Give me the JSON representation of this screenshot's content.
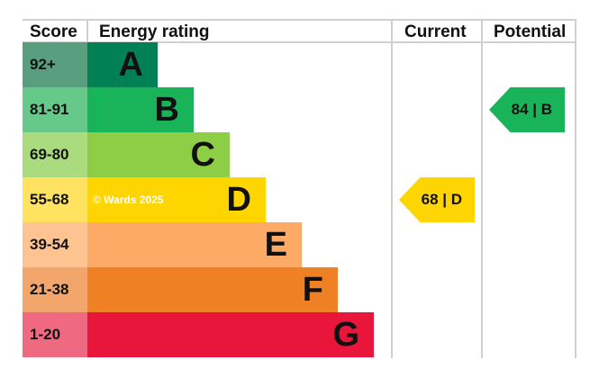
{
  "chart_data": {
    "type": "table",
    "headers": {
      "score": "Score",
      "rating": "Energy rating",
      "current": "Current",
      "potential": "Potential"
    },
    "bands": [
      {
        "letter": "A",
        "range": "92+",
        "color": "#008054",
        "score_color": "#5a9e80"
      },
      {
        "letter": "B",
        "range": "81-91",
        "color": "#19b459",
        "score_color": "#66c98a"
      },
      {
        "letter": "C",
        "range": "69-80",
        "color": "#8dce46",
        "score_color": "#aadb7e"
      },
      {
        "letter": "D",
        "range": "55-68",
        "color": "#ffd500",
        "score_color": "#ffe25f"
      },
      {
        "letter": "E",
        "range": "39-54",
        "color": "#fcaa65",
        "score_color": "#fdc492"
      },
      {
        "letter": "F",
        "range": "21-38",
        "color": "#ef8023",
        "score_color": "#f3a66b"
      },
      {
        "letter": "G",
        "range": "1-20",
        "color": "#e9153b",
        "score_color": "#ef6a80"
      }
    ],
    "current": {
      "value": 68,
      "band": "D",
      "label": "68 | D"
    },
    "potential": {
      "value": 84,
      "band": "B",
      "label": "84 | B"
    }
  },
  "watermark": "© Wards 2025"
}
